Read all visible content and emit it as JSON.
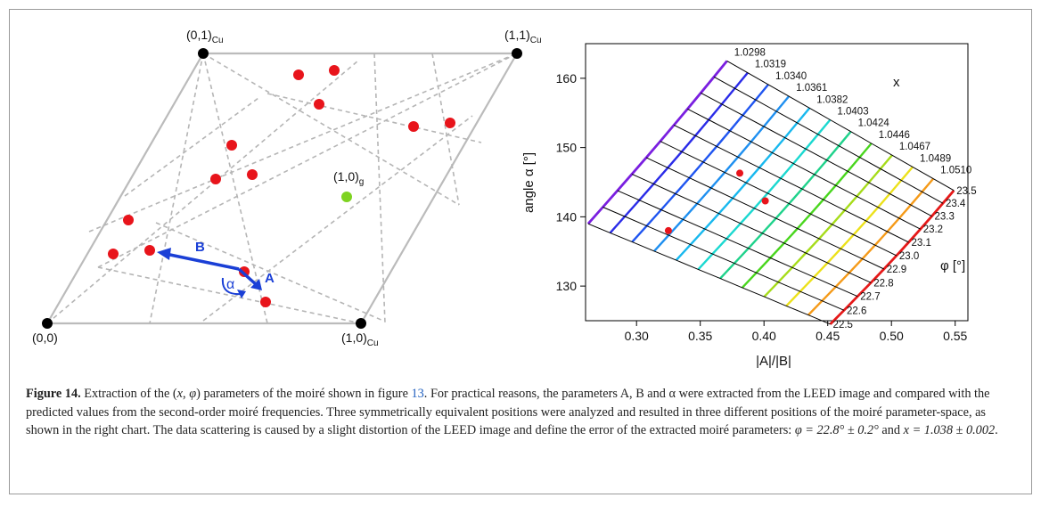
{
  "figure": {
    "label": "Figure 14.",
    "caption_parts": {
      "p1": " Extraction of the (",
      "v1": "x",
      "p2": ", ",
      "v2": "φ",
      "p3": ") parameters of the moiré shown in figure ",
      "ref": "13",
      "p4": ". For practical reasons, the parameters A, B and α were extracted from the LEED image and compared with the predicted values from the second-order moiré frequencies. Three symmetrically equivalent positions were analyzed and resulted in three different positions of the moiré parameter-space, as shown in the right chart. The data scattering is caused by a slight distortion of the LEED image and define the error of the extracted moiré parameters: ",
      "eq1": "φ = 22.8° ± 0.2°",
      "p5": " and ",
      "eq2": "x = 1.038 ± 0.002",
      "p6": "."
    }
  },
  "leed": {
    "corner_labels": {
      "origin": "(0,0)",
      "c01": "(0,1)",
      "c11": "(1,1)",
      "c10": "(1,0)",
      "sub": "Cu"
    },
    "graphene_label": "(1,0)",
    "graphene_sub": "g",
    "vector_a": "A",
    "vector_b": "B",
    "angle": "α",
    "colors": {
      "spot": "#e8141b",
      "graphene": "#7ed321",
      "vector": "#1a3fd6",
      "lattice": "#bbbbbb",
      "corner": "#000000"
    }
  },
  "chart_data": {
    "type": "scatter",
    "xlabel": "|A|/|B|",
    "ylabel": "angle α [°]",
    "xlim": [
      0.26,
      0.56
    ],
    "ylim": [
      125,
      165
    ],
    "xticks": [
      "0.30",
      "0.35",
      "0.40",
      "0.45",
      "0.50",
      "0.55"
    ],
    "yticks": [
      "130",
      "140",
      "150",
      "160"
    ],
    "x_param_label": "x",
    "phi_param_label": "φ [°]",
    "x_curves": [
      "1.0298",
      "1.0319",
      "1.0340",
      "1.0361",
      "1.0382",
      "1.0403",
      "1.0424",
      "1.0446",
      "1.0467",
      "1.0489",
      "1.0510"
    ],
    "phi_curves": [
      "22.5",
      "22.6",
      "22.7",
      "22.8",
      "22.9",
      "23.0",
      "23.1",
      "23.2",
      "23.3",
      "23.4",
      "23.5"
    ],
    "points": [
      {
        "x": 0.325,
        "y": 138.0
      },
      {
        "x": 0.381,
        "y": 146.3
      },
      {
        "x": 0.401,
        "y": 142.3
      }
    ],
    "colors": [
      "#7a1fe0",
      "#2a2be8",
      "#1f55f0",
      "#1e8ff0",
      "#18b8ee",
      "#1bd8d0",
      "#1fd28b",
      "#49d61e",
      "#a6dc1a",
      "#ece11a",
      "#f59a18",
      "#e61919"
    ]
  }
}
